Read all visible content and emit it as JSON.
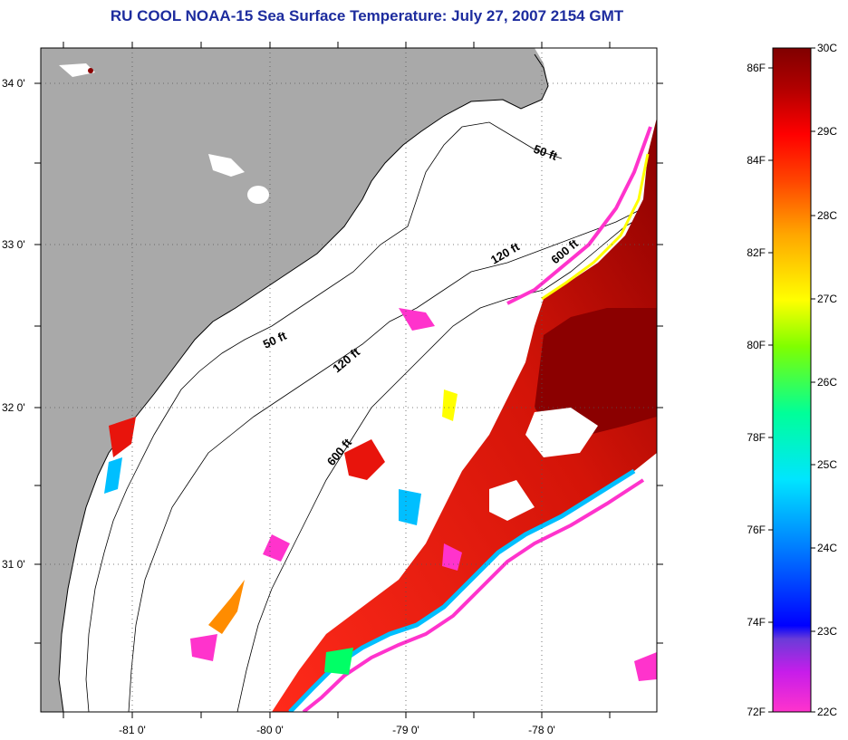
{
  "title": "RU COOL  NOAA-15  Sea Surface Temperature:  July 27, 2007 2154 GMT",
  "map": {
    "lat_labels": [
      "34 0'",
      "33 0'",
      "32 0'",
      "31 0'"
    ],
    "lon_labels": [
      "-81 0'",
      "-80 0'",
      "-79 0'",
      "-78 0'"
    ],
    "isobath_labels": [
      "50 ft",
      "120 ft",
      "600 ft",
      "50 ft",
      "120 ft",
      "600 ft"
    ],
    "colors": {
      "land": "#a9a9a9",
      "ocean_cloud": "#ffffff",
      "warm": "#e8140c",
      "hot": "#8b0000"
    }
  },
  "colorbar": {
    "fahrenheit_labels": [
      "86F",
      "84F",
      "82F",
      "80F",
      "78F",
      "76F",
      "74F",
      "72F"
    ],
    "celsius_labels": [
      "30C",
      "29C",
      "28C",
      "27C",
      "26C",
      "25C",
      "24C",
      "23C",
      "22C"
    ],
    "colors": [
      "#ff33cc",
      "#8a2be2",
      "#0000ff",
      "#00bfff",
      "#00ffff",
      "#00ff66",
      "#7fff00",
      "#ffff00",
      "#ffa500",
      "#ff4500",
      "#ff0000",
      "#b00000",
      "#800000"
    ]
  }
}
